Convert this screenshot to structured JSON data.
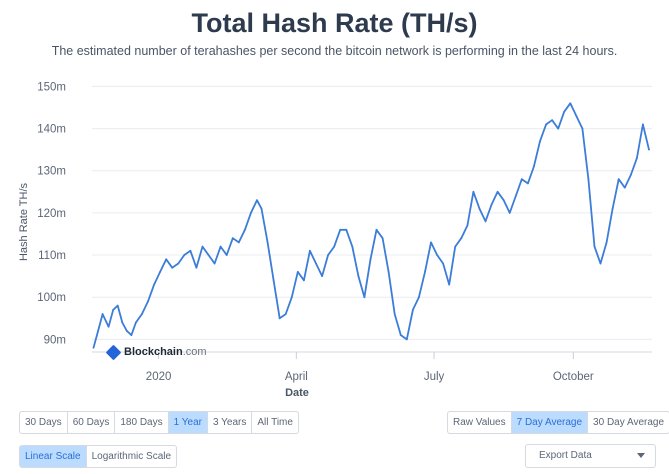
{
  "header": {
    "title": "Total Hash Rate (TH/s)",
    "subtitle": "The estimated number of terahashes per second the bitcoin network is performing in the last 24 hours."
  },
  "watermark": {
    "brand": "Blockchain",
    "tld": ".com"
  },
  "chart_data": {
    "type": "line",
    "xlabel": "Date",
    "ylabel": "Hash Rate TH/s",
    "ylim": [
      87,
      152
    ],
    "xlim": [
      "2019-11-18",
      "2020-11-22"
    ],
    "y_ticks": [
      {
        "value": 90,
        "label": "90m"
      },
      {
        "value": 100,
        "label": "100m"
      },
      {
        "value": 110,
        "label": "110m"
      },
      {
        "value": 120,
        "label": "120m"
      },
      {
        "value": 130,
        "label": "130m"
      },
      {
        "value": 140,
        "label": "140m"
      },
      {
        "value": 150,
        "label": "150m"
      }
    ],
    "x_ticks": [
      {
        "date": "2020-01-01",
        "label": "2020"
      },
      {
        "date": "2020-04-01",
        "label": "April"
      },
      {
        "date": "2020-07-01",
        "label": "July"
      },
      {
        "date": "2020-10-01",
        "label": "October"
      }
    ],
    "grid": true,
    "color": "#3b7dd8",
    "series": [
      {
        "x": [
          "2019-11-19",
          "2019-11-22",
          "2019-11-25",
          "2019-11-29",
          "2019-12-02",
          "2019-12-05",
          "2019-12-08",
          "2019-12-11",
          "2019-12-14",
          "2019-12-17",
          "2019-12-21",
          "2019-12-25",
          "2019-12-29",
          "2020-01-02",
          "2020-01-06",
          "2020-01-10",
          "2020-01-14",
          "2020-01-18",
          "2020-01-22",
          "2020-01-26",
          "2020-01-30",
          "2020-02-03",
          "2020-02-07",
          "2020-02-11",
          "2020-02-15",
          "2020-02-19",
          "2020-02-23",
          "2020-02-27",
          "2020-03-02",
          "2020-03-06",
          "2020-03-09",
          "2020-03-13",
          "2020-03-17",
          "2020-03-21",
          "2020-03-25",
          "2020-03-29",
          "2020-04-02",
          "2020-04-06",
          "2020-04-10",
          "2020-04-14",
          "2020-04-18",
          "2020-04-22",
          "2020-04-26",
          "2020-04-30",
          "2020-05-04",
          "2020-05-08",
          "2020-05-12",
          "2020-05-16",
          "2020-05-20",
          "2020-05-24",
          "2020-05-28",
          "2020-06-01",
          "2020-06-05",
          "2020-06-09",
          "2020-06-13",
          "2020-06-17",
          "2020-06-21",
          "2020-06-25",
          "2020-06-29",
          "2020-07-03",
          "2020-07-07",
          "2020-07-11",
          "2020-07-15",
          "2020-07-19",
          "2020-07-23",
          "2020-07-27",
          "2020-07-31",
          "2020-08-04",
          "2020-08-08",
          "2020-08-12",
          "2020-08-16",
          "2020-08-20",
          "2020-08-24",
          "2020-08-28",
          "2020-09-01",
          "2020-09-05",
          "2020-09-09",
          "2020-09-13",
          "2020-09-17",
          "2020-09-21",
          "2020-09-25",
          "2020-09-29",
          "2020-10-03",
          "2020-10-07",
          "2020-10-11",
          "2020-10-15",
          "2020-10-19",
          "2020-10-23",
          "2020-10-27",
          "2020-10-31",
          "2020-11-04",
          "2020-11-08",
          "2020-11-12",
          "2020-11-16",
          "2020-11-20"
        ],
        "values": [
          88,
          92,
          96,
          93,
          97,
          98,
          94,
          92,
          91,
          94,
          96,
          99,
          103,
          106,
          109,
          107,
          108,
          110,
          111,
          107,
          112,
          110,
          108,
          112,
          110,
          114,
          113,
          116,
          120,
          123,
          121,
          113,
          104,
          95,
          96,
          100,
          106,
          104,
          111,
          108,
          105,
          110,
          112,
          116,
          116,
          112,
          105,
          100,
          109,
          116,
          114,
          106,
          96,
          91,
          90,
          97,
          100,
          106,
          113,
          110,
          108,
          103,
          112,
          114,
          117,
          125,
          121,
          118,
          122,
          125,
          123,
          120,
          124,
          128,
          127,
          131,
          137,
          141,
          142,
          140,
          144,
          146,
          143,
          140,
          128,
          112,
          108,
          113,
          121,
          128,
          126,
          129,
          133,
          141,
          135
        ]
      }
    ]
  },
  "controls": {
    "ranges": [
      "30 Days",
      "60 Days",
      "180 Days",
      "1 Year",
      "3 Years",
      "All Time"
    ],
    "active_range": "1 Year",
    "averages": [
      "Raw Values",
      "7 Day Average",
      "30 Day Average"
    ],
    "active_average": "7 Day Average",
    "scales": [
      "Linear Scale",
      "Logarithmic Scale"
    ],
    "active_scale": "Linear Scale",
    "export_label": "Export Data"
  }
}
